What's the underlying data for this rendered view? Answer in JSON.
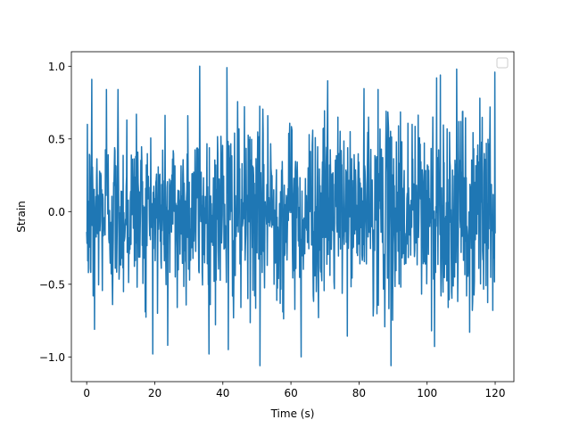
{
  "chart_data": {
    "type": "line",
    "title": "",
    "xlabel": "Time (s)",
    "ylabel": "Strain",
    "xlim": [
      -4.5,
      125.5
    ],
    "ylim": [
      -1.17,
      1.1
    ],
    "x_ticks": [
      0,
      20,
      40,
      60,
      80,
      100,
      120
    ],
    "x_tick_labels": [
      "0",
      "20",
      "40",
      "60",
      "80",
      "100",
      "120"
    ],
    "y_ticks": [
      -1.0,
      -0.5,
      0.0,
      0.5,
      1.0
    ],
    "y_tick_labels": [
      "−1.0",
      "−0.5",
      "0.0",
      "0.5",
      "1.0"
    ],
    "legend": {
      "present": true,
      "placement": "upper right",
      "entries": []
    },
    "grid": false,
    "series": [
      {
        "color": "#1f77b4",
        "x_range": [
          0,
          120
        ],
        "n_points": 1200,
        "description": "dense noise signal",
        "peak_points": [
          {
            "x": 0.0,
            "y": -0.14
          },
          {
            "x": 0.2,
            "y": 0.6
          },
          {
            "x": 0.5,
            "y": -0.42
          },
          {
            "x": 1.5,
            "y": 0.91
          },
          {
            "x": 1.9,
            "y": -0.58
          },
          {
            "x": 2.3,
            "y": -0.81
          },
          {
            "x": 5.8,
            "y": 0.84
          },
          {
            "x": 7.6,
            "y": -0.64
          },
          {
            "x": 9.2,
            "y": 0.84
          },
          {
            "x": 11.8,
            "y": 0.63
          },
          {
            "x": 14.6,
            "y": 0.67
          },
          {
            "x": 17.2,
            "y": -0.69
          },
          {
            "x": 20.8,
            "y": -0.7
          },
          {
            "x": 23.8,
            "y": -0.92
          },
          {
            "x": 26.6,
            "y": -0.66
          },
          {
            "x": 29.7,
            "y": 0.66
          },
          {
            "x": 33.2,
            "y": 1.0
          },
          {
            "x": 36.3,
            "y": -0.64
          },
          {
            "x": 41.2,
            "y": 0.99
          },
          {
            "x": 41.6,
            "y": -0.95
          },
          {
            "x": 45.3,
            "y": -0.66
          },
          {
            "x": 50.9,
            "y": -1.06
          },
          {
            "x": 53.2,
            "y": 0.66
          },
          {
            "x": 57.6,
            "y": -0.69
          },
          {
            "x": 60.3,
            "y": 0.56
          },
          {
            "x": 63.0,
            "y": -1.0
          },
          {
            "x": 66.4,
            "y": 0.56
          },
          {
            "x": 68.1,
            "y": -0.73
          },
          {
            "x": 70.8,
            "y": 0.9
          },
          {
            "x": 73.8,
            "y": 0.65
          },
          {
            "x": 77.4,
            "y": 0.55
          },
          {
            "x": 82.8,
            "y": 0.65
          },
          {
            "x": 85.6,
            "y": 0.84
          },
          {
            "x": 89.4,
            "y": -1.06
          },
          {
            "x": 91.6,
            "y": 0.59
          },
          {
            "x": 95.6,
            "y": 0.6
          },
          {
            "x": 101.3,
            "y": -0.82
          },
          {
            "x": 102.8,
            "y": 0.92
          },
          {
            "x": 103.9,
            "y": 0.94
          },
          {
            "x": 106.2,
            "y": -0.66
          },
          {
            "x": 109.3,
            "y": 0.62
          },
          {
            "x": 111.6,
            "y": -0.58
          },
          {
            "x": 112.5,
            "y": -0.83
          },
          {
            "x": 115.5,
            "y": 0.78
          },
          {
            "x": 117.4,
            "y": 0.47
          },
          {
            "x": 118.5,
            "y": 0.72
          },
          {
            "x": 119.3,
            "y": -0.68
          },
          {
            "x": 120.0,
            "y": -0.15
          }
        ],
        "amplitude_profile": [
          {
            "x": 0,
            "a": 0.3
          },
          {
            "x": 20,
            "a": 0.28
          },
          {
            "x": 40,
            "a": 0.32
          },
          {
            "x": 60,
            "a": 0.29
          },
          {
            "x": 80,
            "a": 0.3
          },
          {
            "x": 100,
            "a": 0.34
          },
          {
            "x": 120,
            "a": 0.32
          }
        ],
        "seed": 12345
      }
    ]
  }
}
